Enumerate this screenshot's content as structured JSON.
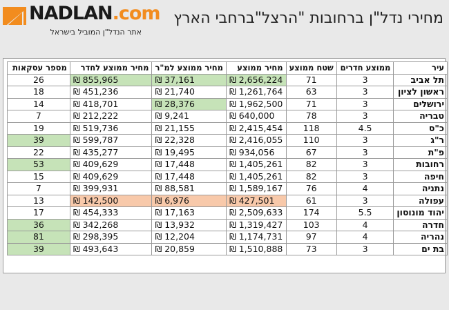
{
  "logo": {
    "brand": "NADLAN",
    "dot": ".",
    "tld": "com",
    "tagline": "אתר הנדל\"ן המוביל בישראל"
  },
  "title": "מחירי נדל\"ן ברחובות \"הרצל\"ברחבי הארץ",
  "colors": {
    "green": "#c6e3b8",
    "orange": "#f8c9aa",
    "logo_orange": "#f28c1e"
  },
  "table": {
    "headers": [
      "עיר",
      "ממוצע חדרים",
      "שטח ממוצע",
      "מחיר ממוצע",
      "מחיר ממוצע למ\"ר",
      "מחיר ממוצע לחדר",
      "מספר עסקאות"
    ],
    "rows": [
      {
        "city": "תל אביב",
        "rooms": "3",
        "area": "71",
        "price": "₪ 2,656,224",
        "sqm": "₪ 37,161",
        "room": "₪ 855,965",
        "deals": "26"
      },
      {
        "city": "ראשון לציון",
        "rooms": "3",
        "area": "63",
        "price": "₪ 1,261,764",
        "sqm": "₪ 21,740",
        "room": "₪ 451,236",
        "deals": "18"
      },
      {
        "city": "ירושלים",
        "rooms": "3",
        "area": "71",
        "price": "₪ 1,962,500",
        "sqm": "₪ 28,376",
        "room": "₪ 418,701",
        "deals": "14"
      },
      {
        "city": "טבריה",
        "rooms": "3",
        "area": "78",
        "price": "₪ 640,000",
        "sqm": "₪ 9,241",
        "room": "₪ 212,222",
        "deals": "7"
      },
      {
        "city": "כ\"ס",
        "rooms": "4.5",
        "area": "118",
        "price": "₪ 2,415,454",
        "sqm": "₪ 21,155",
        "room": "₪ 519,736",
        "deals": "19"
      },
      {
        "city": "ר\"ג",
        "rooms": "3",
        "area": "110",
        "price": "₪ 2,416,055",
        "sqm": "₪ 22,328",
        "room": "₪ 599,787",
        "deals": "39"
      },
      {
        "city": "פ\"ת",
        "rooms": "3",
        "area": "67",
        "price": "₪ 934,056",
        "sqm": "₪ 19,495",
        "room": "₪ 435,277",
        "deals": "22"
      },
      {
        "city": "רחובות",
        "rooms": "3",
        "area": "82",
        "price": "₪ 1,405,261",
        "sqm": "₪ 17,448",
        "room": "₪ 409,629",
        "deals": "53"
      },
      {
        "city": "חיפה",
        "rooms": "3",
        "area": "82",
        "price": "₪ 1,405,261",
        "sqm": "₪ 17,448",
        "room": "₪ 409,629",
        "deals": "15"
      },
      {
        "city": "נתניה",
        "rooms": "4",
        "area": "76",
        "price": "₪ 1,589,167",
        "sqm": "₪ 88,581",
        "room": "₪ 399,931",
        "deals": "7"
      },
      {
        "city": "עפולה",
        "rooms": "3",
        "area": "61",
        "price": "₪ 427,501",
        "sqm": "₪ 6,976",
        "room": "₪ 142,500",
        "deals": "13"
      },
      {
        "city": "יהוד מונוסון",
        "rooms": "5.5",
        "area": "174",
        "price": "₪ 2,509,633",
        "sqm": "₪ 17,163",
        "room": "₪ 454,333",
        "deals": "17"
      },
      {
        "city": "חדרה",
        "rooms": "4",
        "area": "103",
        "price": "₪ 1,319,427",
        "sqm": "₪ 13,932",
        "room": "₪ 342,268",
        "deals": "36"
      },
      {
        "city": "נהריה",
        "rooms": "4",
        "area": "97",
        "price": "₪ 1,174,731",
        "sqm": "₪ 12,204",
        "room": "₪ 298,395",
        "deals": "81"
      },
      {
        "city": "בת ים",
        "rooms": "3",
        "area": "73",
        "price": "₪ 1,510,888",
        "sqm": "₪ 20,859",
        "room": "₪ 493,643",
        "deals": "39"
      }
    ]
  }
}
